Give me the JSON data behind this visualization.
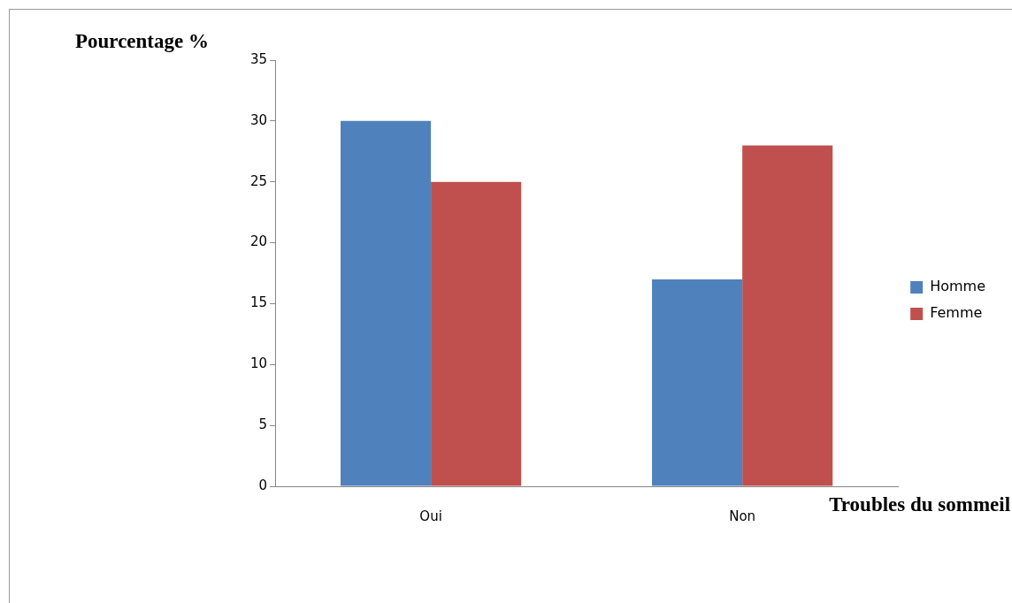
{
  "chart_data": {
    "type": "bar",
    "xlabel": "Troubles du sommeil",
    "ylabel": "Pourcentage %",
    "categories": [
      "Oui",
      "Non"
    ],
    "series": [
      {
        "name": "Homme",
        "color": "#4f81bd",
        "values": [
          30,
          17
        ]
      },
      {
        "name": "Femme",
        "color": "#c0504d",
        "values": [
          25,
          28
        ]
      }
    ],
    "ylim": [
      0,
      35
    ],
    "yticks": [
      0,
      5,
      10,
      15,
      20,
      25,
      30,
      35
    ],
    "grid": false,
    "legend": "right"
  }
}
